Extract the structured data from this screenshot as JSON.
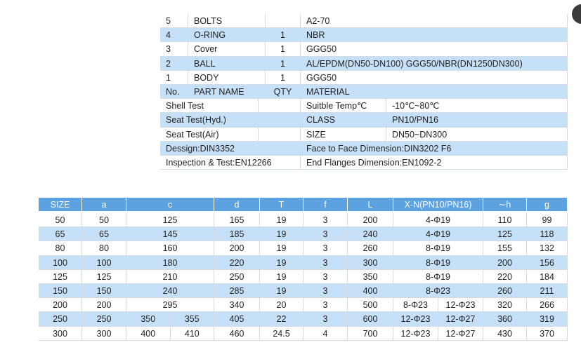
{
  "parts": {
    "rows": [
      {
        "no": "5",
        "name": "BOLTS",
        "material": "A2-70"
      },
      {
        "no": "4",
        "name": "O-RING",
        "qty": "1",
        "material": "NBR"
      },
      {
        "no": "3",
        "name": "Cover",
        "qty": "1",
        "material": "GGG50"
      },
      {
        "no": "2",
        "name": "BALL",
        "qty": "1",
        "material": "AL/EPDM(DN50-DN100)  GGG50/NBR(DN1250DN300)"
      },
      {
        "no": "1",
        "name": "BODY",
        "qty": "1",
        "material": "GGG50"
      }
    ],
    "header": {
      "no": "No.",
      "name": "PART NAME",
      "qty": "QTY",
      "material": "MATERIAL"
    }
  },
  "specs": [
    {
      "test": "Shell Test",
      "label": "Suitble Temp℃",
      "value": "-10℃~80℃"
    },
    {
      "test": "Seat Test(Hyd.)",
      "label": "CLASS",
      "value": "PN10/PN16"
    },
    {
      "test": "Seat Test(Air)",
      "label": "SIZE",
      "value": "DN50~DN300"
    },
    {
      "test": "Dessign:DIN3352",
      "label": "Face to Face Dimension:DIN3202 F6"
    },
    {
      "test": "Inspection & Test:EN12266",
      "label": "End Flanges Dimension:EN1092-2"
    }
  ],
  "dimensions": {
    "header": [
      "SIZE",
      "a",
      "c",
      "d",
      "T",
      "f",
      "L",
      "X-N(PN10/PN16)",
      "∼h",
      "g"
    ],
    "rows": [
      [
        50,
        50,
        [
          125
        ],
        165,
        19,
        3,
        200,
        [
          "4-Φ19"
        ],
        110,
        99
      ],
      [
        65,
        65,
        [
          145
        ],
        185,
        19,
        3,
        240,
        [
          "4-Φ19"
        ],
        125,
        118
      ],
      [
        80,
        80,
        [
          160
        ],
        200,
        19,
        3,
        260,
        [
          "8-Φ19"
        ],
        155,
        132
      ],
      [
        100,
        100,
        [
          180
        ],
        220,
        19,
        3,
        300,
        [
          "8-Φ19"
        ],
        200,
        156
      ],
      [
        125,
        125,
        [
          210
        ],
        250,
        19,
        3,
        350,
        [
          "8-Φ19"
        ],
        220,
        184
      ],
      [
        150,
        150,
        [
          240
        ],
        285,
        19,
        3,
        400,
        [
          "8-Φ23"
        ],
        260,
        211
      ],
      [
        200,
        200,
        [
          295
        ],
        340,
        20,
        3,
        500,
        [
          "8-Φ23",
          "12-Φ23"
        ],
        320,
        266
      ],
      [
        250,
        250,
        [
          350,
          355
        ],
        405,
        22,
        3,
        600,
        [
          "12-Φ23",
          "12-Φ27"
        ],
        360,
        319
      ],
      [
        300,
        300,
        [
          400,
          410
        ],
        460,
        24.5,
        4,
        700,
        [
          "12-Φ23",
          "12-Φ27"
        ],
        430,
        370
      ]
    ]
  }
}
